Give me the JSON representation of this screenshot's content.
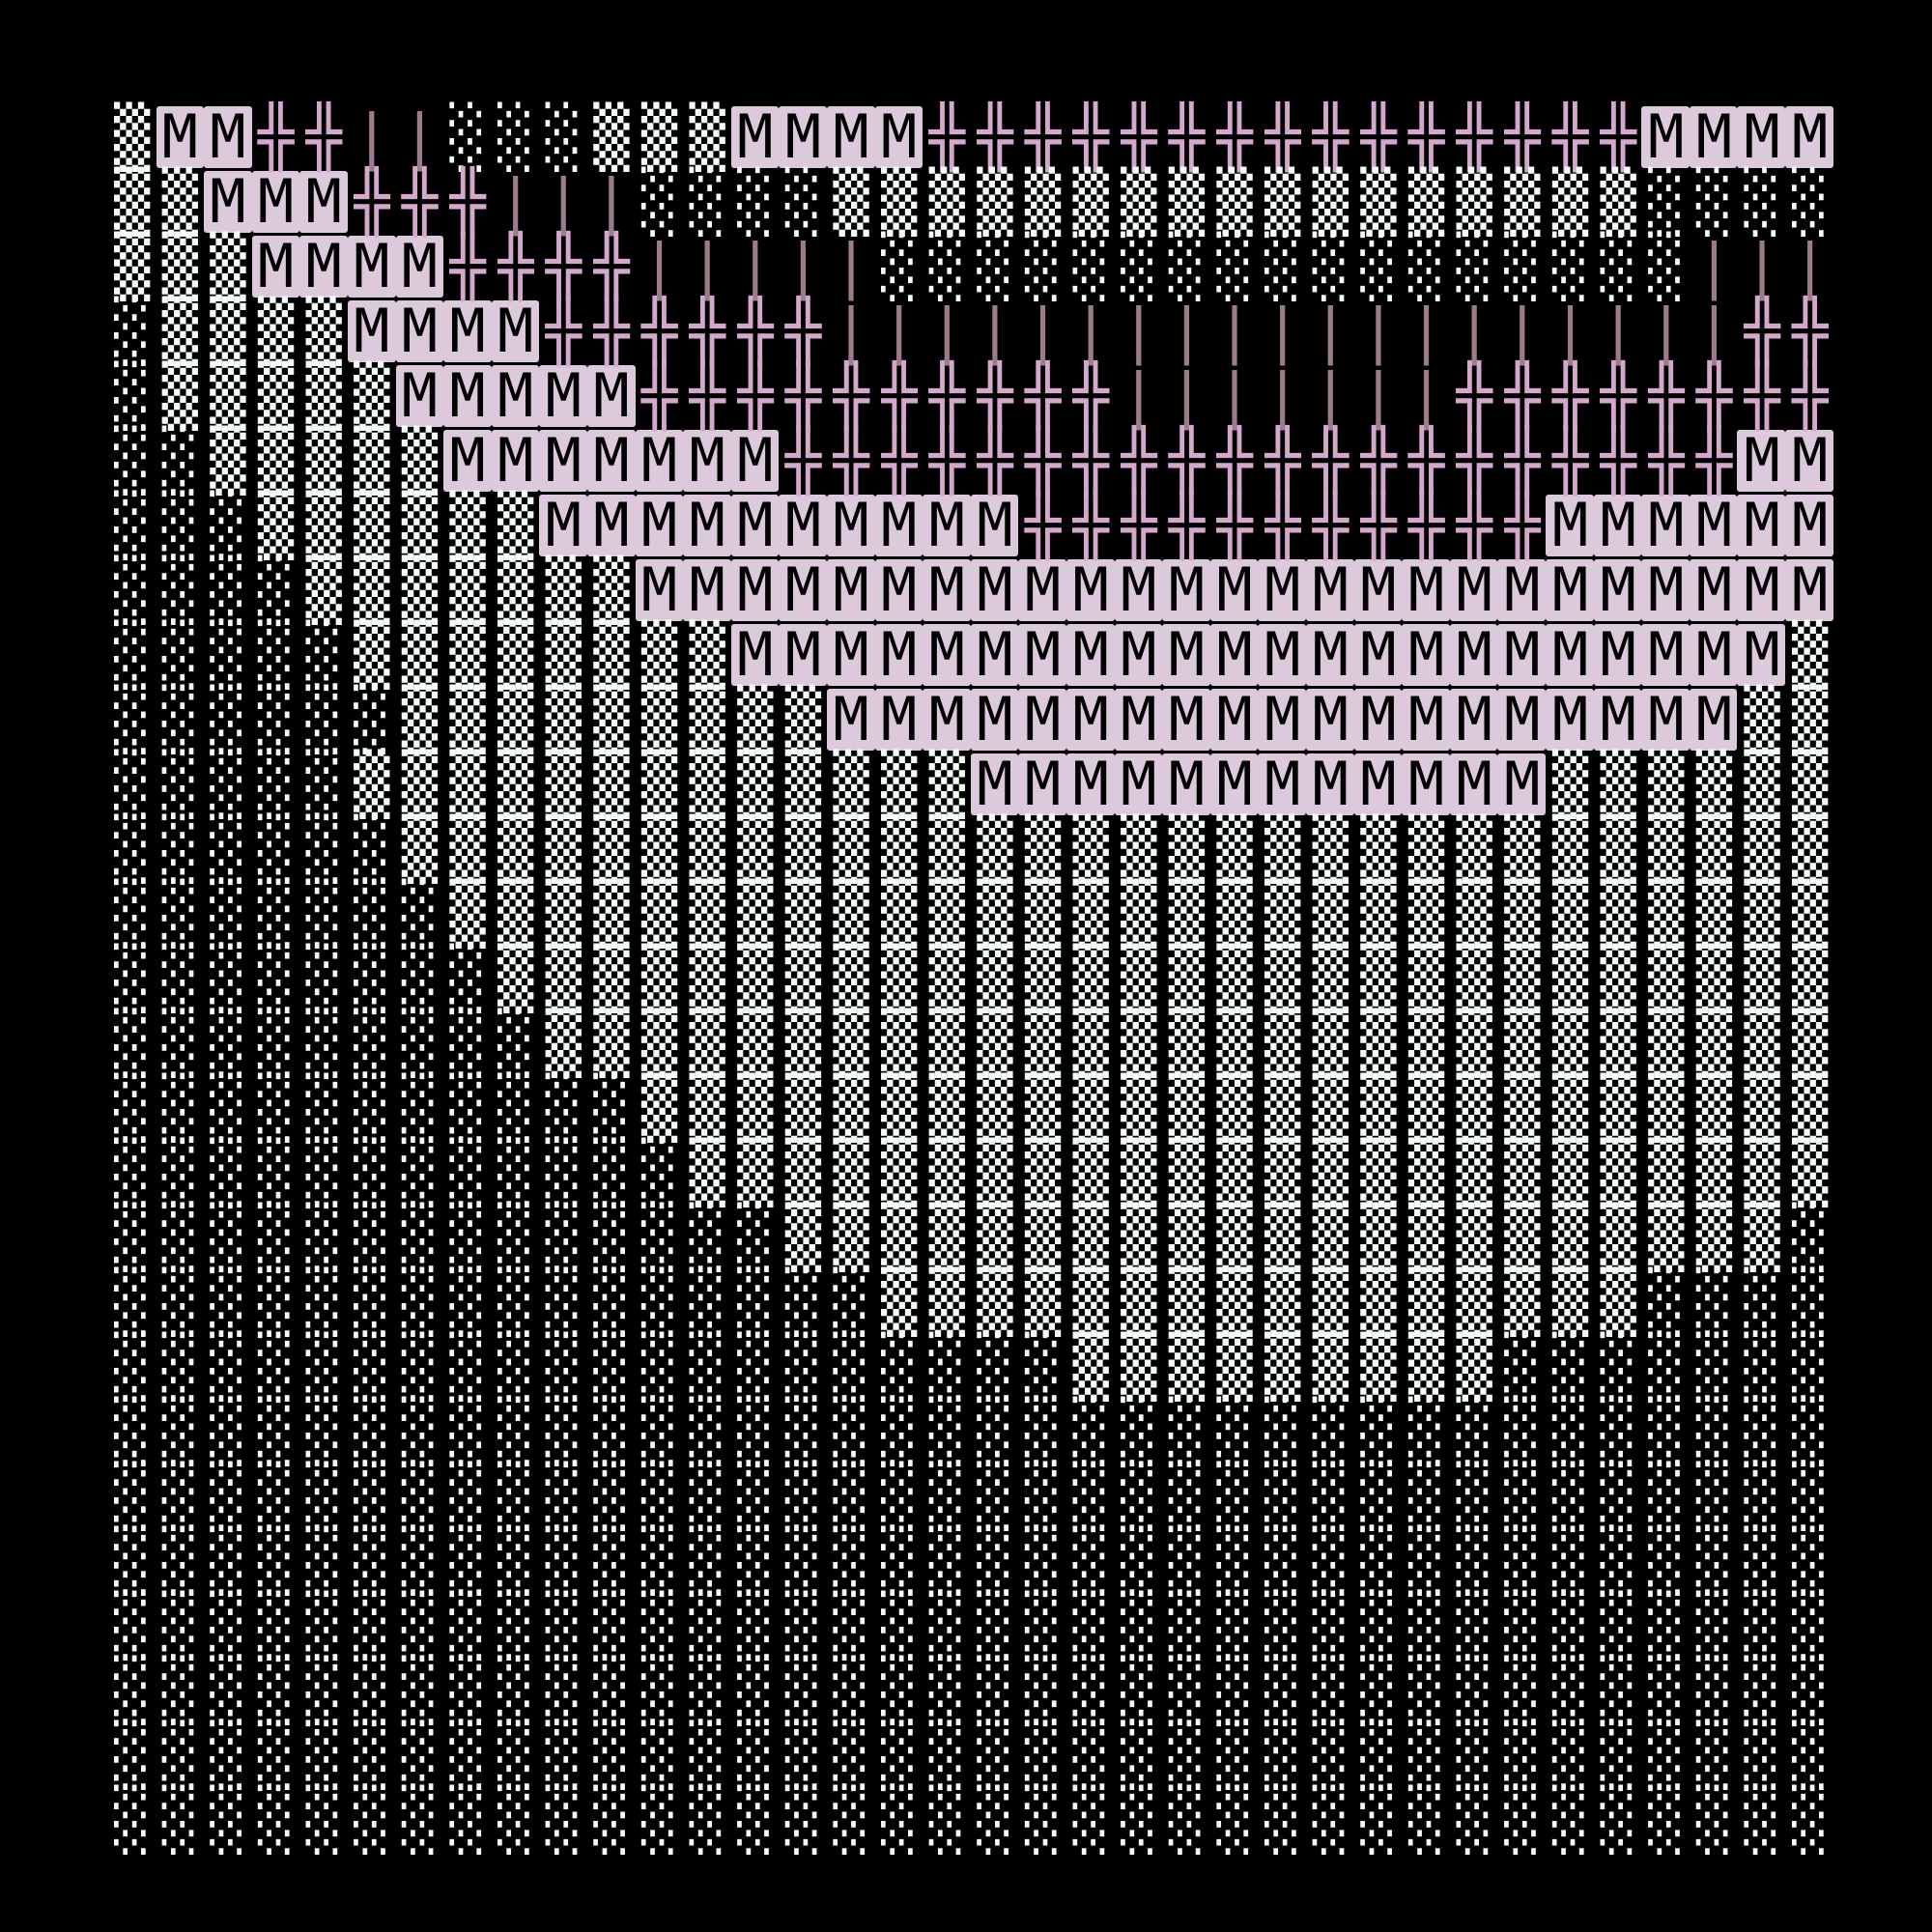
{
  "palette": {
    "background": "#000000",
    "dots": "#f4fbf8",
    "block_bg": "#dccadc",
    "cross": "#d4a8cc",
    "bar": "#9c7c8c"
  },
  "art": {
    "rows": [
      "▒MM╬╬||░░░▒▒▒MMMM╬╬╬╬╬╬╬╬╬╬╬╬╬╬╬MMMM",
      "▒▒MMM╬╬╬|||░░░░▒▒▒▒▒▒▒▒▒▒▒▒▒▒▒▒▒░░░░",
      "▒▒▒MMMM╬╬╬╬|||||░░░░░░░░░░░░░░░░░|||",
      "░▒▒▒▒MMMM╬╬╬╬╬╬|||||||||||||||||||╬╬",
      "░▒▒▒▒▒MMMMM╬╬╬╬╬╬╬╬╬╬|||||||╬╬╬╬╬╬╬╬",
      "░░▒▒▒▒▒MMMMMMM╬╬╬╬╬╬╬╬╬╬╬╬╬╬╬╬╬╬╬╬MM",
      "░░░▒▒▒▒▒▒MMMMMMMMMM╬╬╬╬╬╬╬╬╬╬╬MMMMMM",
      "░░░░▒▒▒▒▒▒▒MMMMMMMMMMMMMMMMMMMMMMMMM",
      "░░░░░▒▒▒▒▒▒▒▒MMMMMMMMMMMMMMMMMMMMMM▒",
      "░░░░░░▒▒▒▒▒▒▒▒▒MMMMMMMMMMMMMMMMMMM▒▒",
      "░░░░░▒▒▒▒▒▒▒▒▒▒▒▒▒MMMMMMMMMMMM▒▒▒▒▒▒",
      "░░░░░░▒▒▒▒▒▒▒▒▒▒▒▒▒▒▒▒▒▒▒▒▒▒▒▒▒▒▒▒▒▒",
      "░░░░░░░▒▒▒▒▒▒▒▒▒▒▒▒▒▒▒▒▒▒▒▒▒▒▒▒▒▒▒▒▒",
      "░░░░░░░░▒▒▒▒▒▒▒▒▒▒▒▒▒▒▒▒▒▒▒▒▒▒▒▒▒▒▒▒",
      "░░░░░░░░░▒▒▒▒▒▒▒▒▒▒▒▒▒▒▒▒▒▒▒▒▒▒▒▒▒▒▒",
      "░░░░░░░░░░░▒▒▒▒▒▒▒▒▒▒▒▒▒▒▒▒▒▒▒▒▒▒▒▒▒",
      "░░░░░░░░░░░░▒▒▒▒▒▒▒▒▒▒▒▒▒▒▒▒▒▒▒▒▒▒▒▒",
      "░░░░░░░░░░░░░░▒▒▒▒▒▒▒▒▒▒▒▒▒▒▒▒▒▒▒▒▒░",
      "░░░░░░░░░░░░░░░░▒▒▒▒▒▒▒▒▒▒▒▒▒▒▒▒░░░░",
      "░░░░░░░░░░░░░░░░░░░░▒▒▒▒▒▒▒▒▒░░░░░░░",
      "░░░░░░░░░░░░░░░░░░░░░░░░░░░░░░░░░░░░",
      "░░░░░░░░░░░░░░░░░░░░░░░░░░░░░░░░░░░░",
      "░░░░░░░░░░░░░░░░░░░░░░░░░░░░░░░░░░░░",
      "░░░░░░░░░░░░░░░░░░░░░░░░░░░░░░░░░░░░",
      "░░░░░░░░░░░░░░░░░░░░░░░░░░░░░░░░░░░░",
      "░░░░░░░░░░░░░░░░░░░░░░░░░░░░░░░░░░░░",
      "░░░░░░░░░░░░░░░░░░░░░░░░░░░░░░░░░░░░"
    ]
  }
}
